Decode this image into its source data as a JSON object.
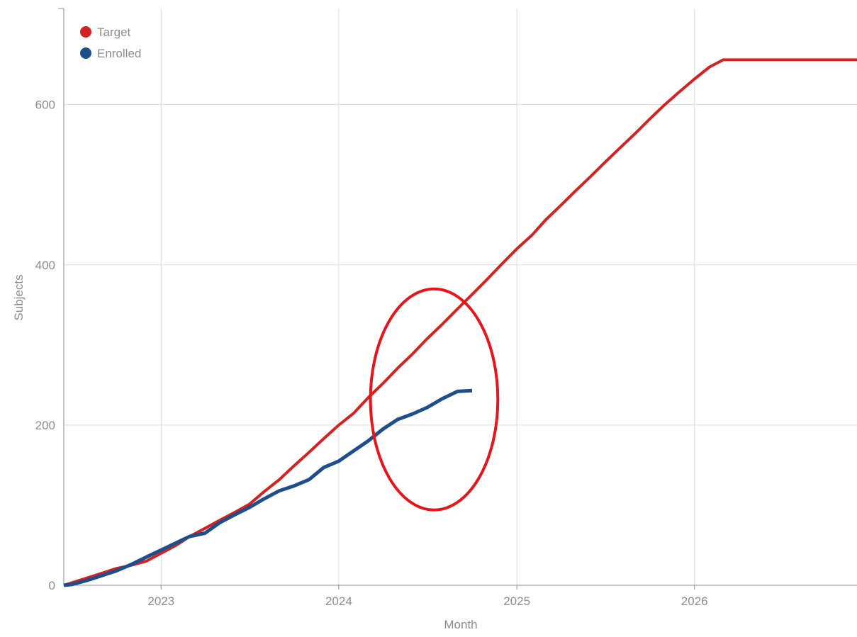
{
  "chart_data": {
    "type": "line",
    "title": "",
    "xlabel": "Month",
    "ylabel": "Subjects",
    "x_tick_labels": [
      "2023",
      "2024",
      "2025",
      "2026"
    ],
    "y_tick_labels": [
      "0",
      "200",
      "400",
      "600"
    ],
    "y_ticks": [
      0,
      200,
      400,
      600
    ],
    "xlim": [
      "2022-06-15",
      "2026-12-01"
    ],
    "ylim": [
      0,
      720
    ],
    "grid": true,
    "legend": {
      "position": "top-left"
    },
    "series": [
      {
        "name": "Target",
        "color": "#d42121",
        "points": [
          [
            "2022-06-15",
            0
          ],
          [
            "2022-08-01",
            9
          ],
          [
            "2022-09-01",
            15
          ],
          [
            "2022-10-01",
            21
          ],
          [
            "2022-11-01",
            25
          ],
          [
            "2022-12-01",
            30
          ],
          [
            "2023-01-01",
            40
          ],
          [
            "2023-02-01",
            50
          ],
          [
            "2023-03-01",
            61
          ],
          [
            "2023-04-01",
            71
          ],
          [
            "2023-05-01",
            81
          ],
          [
            "2023-06-01",
            91
          ],
          [
            "2023-07-01",
            101
          ],
          [
            "2023-08-01",
            117
          ],
          [
            "2023-09-01",
            132
          ],
          [
            "2023-10-01",
            149
          ],
          [
            "2023-11-01",
            166
          ],
          [
            "2023-12-01",
            183
          ],
          [
            "2024-01-01",
            200
          ],
          [
            "2024-02-01",
            215
          ],
          [
            "2024-03-01",
            234
          ],
          [
            "2024-04-01",
            252
          ],
          [
            "2024-05-01",
            271
          ],
          [
            "2024-06-01",
            289
          ],
          [
            "2024-07-01",
            308
          ],
          [
            "2024-08-01",
            326
          ],
          [
            "2024-09-01",
            345
          ],
          [
            "2024-10-01",
            363
          ],
          [
            "2024-11-01",
            382
          ],
          [
            "2024-12-01",
            401
          ],
          [
            "2025-01-01",
            420
          ],
          [
            "2025-02-01",
            437
          ],
          [
            "2025-03-01",
            456
          ],
          [
            "2025-04-01",
            474
          ],
          [
            "2025-05-01",
            492
          ],
          [
            "2025-06-01",
            510
          ],
          [
            "2025-07-01",
            528
          ],
          [
            "2025-08-01",
            546
          ],
          [
            "2025-09-01",
            564
          ],
          [
            "2025-10-01",
            582
          ],
          [
            "2025-11-01",
            600
          ],
          [
            "2025-12-01",
            616
          ],
          [
            "2026-01-01",
            632
          ],
          [
            "2026-02-01",
            647
          ],
          [
            "2026-03-01",
            656
          ],
          [
            "2026-04-01",
            656
          ],
          [
            "2026-12-01",
            656
          ]
        ]
      },
      {
        "name": "Enrolled",
        "color": "#1f4e8c",
        "points": [
          [
            "2022-06-15",
            0
          ],
          [
            "2022-07-01",
            1
          ],
          [
            "2022-08-01",
            6
          ],
          [
            "2022-09-01",
            12
          ],
          [
            "2022-10-01",
            18
          ],
          [
            "2022-11-01",
            26
          ],
          [
            "2022-12-01",
            35
          ],
          [
            "2023-01-01",
            44
          ],
          [
            "2023-02-01",
            53
          ],
          [
            "2023-03-01",
            61
          ],
          [
            "2023-04-01",
            65
          ],
          [
            "2023-05-01",
            78
          ],
          [
            "2023-06-01",
            88
          ],
          [
            "2023-07-01",
            97
          ],
          [
            "2023-08-01",
            108
          ],
          [
            "2023-09-01",
            118
          ],
          [
            "2023-10-01",
            124
          ],
          [
            "2023-11-01",
            132
          ],
          [
            "2023-12-01",
            147
          ],
          [
            "2024-01-01",
            155
          ],
          [
            "2024-02-01",
            168
          ],
          [
            "2024-03-01",
            180
          ],
          [
            "2024-04-01",
            195
          ],
          [
            "2024-05-01",
            207
          ],
          [
            "2024-06-01",
            214
          ],
          [
            "2024-07-01",
            222
          ],
          [
            "2024-08-01",
            233
          ],
          [
            "2024-09-01",
            242
          ],
          [
            "2024-10-01",
            243
          ]
        ]
      }
    ],
    "annotations": [
      {
        "type": "ellipse",
        "color": "#e8141b",
        "center": [
          "2024-07-15",
          232
        ],
        "rx_months": 4.3,
        "ry": 138
      }
    ]
  }
}
